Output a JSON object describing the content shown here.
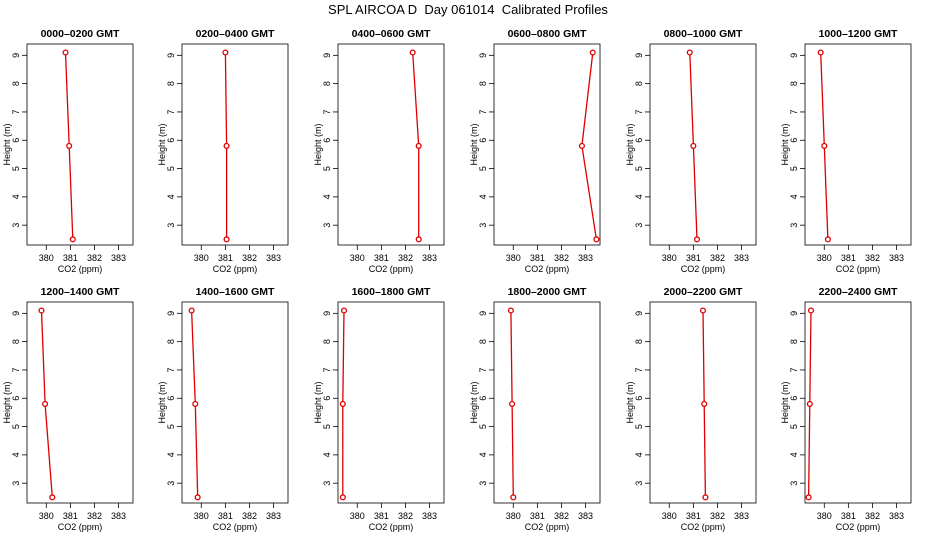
{
  "title": "SPL AIRCOA D  Day 061014  Calibrated Profiles",
  "colors": {
    "profile_line": "#dd0000",
    "axes": "#000000",
    "background": "#ffffff"
  },
  "chart_data": [
    {
      "type": "line",
      "title": "0000–0200 GMT",
      "xlabel": "CO2 (ppm)",
      "ylabel": "Height (m)",
      "xlim": [
        379.2,
        383.6
      ],
      "ylim": [
        2.3,
        9.4
      ],
      "xticks": [
        380,
        381,
        382,
        383
      ],
      "yticks": [
        3,
        4,
        5,
        6,
        7,
        8,
        9
      ],
      "series": [
        {
          "x": [
            380.8,
            380.95,
            381.1
          ],
          "y": [
            9.1,
            5.8,
            2.5
          ]
        }
      ]
    },
    {
      "type": "line",
      "title": "0200–0400 GMT",
      "xlabel": "CO2 (ppm)",
      "ylabel": "Height (m)",
      "xlim": [
        379.2,
        383.6
      ],
      "ylim": [
        2.3,
        9.4
      ],
      "xticks": [
        380,
        381,
        382,
        383
      ],
      "yticks": [
        3,
        4,
        5,
        6,
        7,
        8,
        9
      ],
      "series": [
        {
          "x": [
            381.0,
            381.05,
            381.05
          ],
          "y": [
            9.1,
            5.8,
            2.5
          ]
        }
      ]
    },
    {
      "type": "line",
      "title": "0400–0600 GMT",
      "xlabel": "CO2 (ppm)",
      "ylabel": "Height (m)",
      "xlim": [
        379.2,
        383.6
      ],
      "ylim": [
        2.3,
        9.4
      ],
      "xticks": [
        380,
        381,
        382,
        383
      ],
      "yticks": [
        3,
        4,
        5,
        6,
        7,
        8,
        9
      ],
      "series": [
        {
          "x": [
            382.3,
            382.55,
            382.55
          ],
          "y": [
            9.1,
            5.8,
            2.5
          ]
        }
      ]
    },
    {
      "type": "line",
      "title": "0600–0800 GMT",
      "xlabel": "CO2 (ppm)",
      "ylabel": "Height (m)",
      "xlim": [
        379.2,
        383.6
      ],
      "ylim": [
        2.3,
        9.4
      ],
      "xticks": [
        380,
        381,
        382,
        383
      ],
      "yticks": [
        3,
        4,
        5,
        6,
        7,
        8,
        9
      ],
      "series": [
        {
          "x": [
            383.3,
            382.85,
            383.45
          ],
          "y": [
            9.1,
            5.8,
            2.5
          ]
        }
      ]
    },
    {
      "type": "line",
      "title": "0800–1000 GMT",
      "xlabel": "CO2 (ppm)",
      "ylabel": "Height (m)",
      "xlim": [
        379.2,
        383.6
      ],
      "ylim": [
        2.3,
        9.4
      ],
      "xticks": [
        380,
        381,
        382,
        383
      ],
      "yticks": [
        3,
        4,
        5,
        6,
        7,
        8,
        9
      ],
      "series": [
        {
          "x": [
            380.85,
            381.0,
            381.15
          ],
          "y": [
            9.1,
            5.8,
            2.5
          ]
        }
      ]
    },
    {
      "type": "line",
      "title": "1000–1200 GMT",
      "xlabel": "CO2 (ppm)",
      "ylabel": "Height (m)",
      "xlim": [
        379.2,
        383.6
      ],
      "ylim": [
        2.3,
        9.4
      ],
      "xticks": [
        380,
        381,
        382,
        383
      ],
      "yticks": [
        3,
        4,
        5,
        6,
        7,
        8,
        9
      ],
      "series": [
        {
          "x": [
            379.85,
            380.0,
            380.15
          ],
          "y": [
            9.1,
            5.8,
            2.5
          ]
        }
      ]
    },
    {
      "type": "line",
      "title": "1200–1400 GMT",
      "xlabel": "CO2 (ppm)",
      "ylabel": "Height (m)",
      "xlim": [
        379.2,
        383.6
      ],
      "ylim": [
        2.3,
        9.4
      ],
      "xticks": [
        380,
        381,
        382,
        383
      ],
      "yticks": [
        3,
        4,
        5,
        6,
        7,
        8,
        9
      ],
      "series": [
        {
          "x": [
            379.8,
            379.95,
            380.25
          ],
          "y": [
            9.1,
            5.8,
            2.5
          ]
        }
      ]
    },
    {
      "type": "line",
      "title": "1400–1600 GMT",
      "xlabel": "CO2 (ppm)",
      "ylabel": "Height (m)",
      "xlim": [
        379.2,
        383.6
      ],
      "ylim": [
        2.3,
        9.4
      ],
      "xticks": [
        380,
        381,
        382,
        383
      ],
      "yticks": [
        3,
        4,
        5,
        6,
        7,
        8,
        9
      ],
      "series": [
        {
          "x": [
            379.6,
            379.75,
            379.85
          ],
          "y": [
            9.1,
            5.8,
            2.5
          ]
        }
      ]
    },
    {
      "type": "line",
      "title": "1600–1800 GMT",
      "xlabel": "CO2 (ppm)",
      "ylabel": "Height (m)",
      "xlim": [
        379.2,
        383.6
      ],
      "ylim": [
        2.3,
        9.4
      ],
      "xticks": [
        380,
        381,
        382,
        383
      ],
      "yticks": [
        3,
        4,
        5,
        6,
        7,
        8,
        9
      ],
      "series": [
        {
          "x": [
            379.45,
            379.4,
            379.4
          ],
          "y": [
            9.1,
            5.8,
            2.5
          ]
        }
      ]
    },
    {
      "type": "line",
      "title": "1800–2000 GMT",
      "xlabel": "CO2 (ppm)",
      "ylabel": "Height (m)",
      "xlim": [
        379.2,
        383.6
      ],
      "ylim": [
        2.3,
        9.4
      ],
      "xticks": [
        380,
        381,
        382,
        383
      ],
      "yticks": [
        3,
        4,
        5,
        6,
        7,
        8,
        9
      ],
      "series": [
        {
          "x": [
            379.9,
            379.95,
            380.0
          ],
          "y": [
            9.1,
            5.8,
            2.5
          ]
        }
      ]
    },
    {
      "type": "line",
      "title": "2000–2200 GMT",
      "xlabel": "CO2 (ppm)",
      "ylabel": "Height (m)",
      "xlim": [
        379.2,
        383.6
      ],
      "ylim": [
        2.3,
        9.4
      ],
      "xticks": [
        380,
        381,
        382,
        383
      ],
      "yticks": [
        3,
        4,
        5,
        6,
        7,
        8,
        9
      ],
      "series": [
        {
          "x": [
            381.4,
            381.45,
            381.5
          ],
          "y": [
            9.1,
            5.8,
            2.5
          ]
        }
      ]
    },
    {
      "type": "line",
      "title": "2200–2400 GMT",
      "xlabel": "CO2 (ppm)",
      "ylabel": "Height (m)",
      "xlim": [
        379.2,
        383.6
      ],
      "ylim": [
        2.3,
        9.4
      ],
      "xticks": [
        380,
        381,
        382,
        383
      ],
      "yticks": [
        3,
        4,
        5,
        6,
        7,
        8,
        9
      ],
      "series": [
        {
          "x": [
            379.45,
            379.4,
            379.35
          ],
          "y": [
            9.1,
            5.8,
            2.5
          ]
        }
      ]
    }
  ]
}
